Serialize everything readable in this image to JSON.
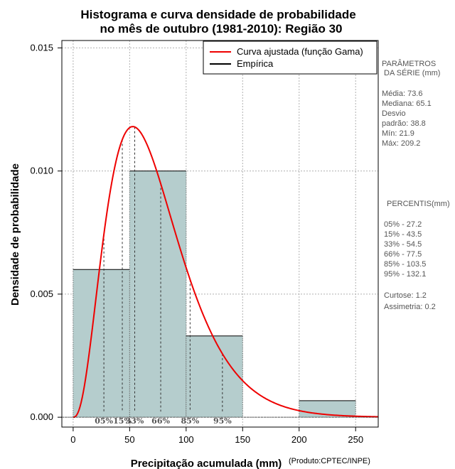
{
  "chart_data": {
    "type": "bar",
    "title_lines": [
      "Histograma e curva densidade de probabilidade",
      "no mês de outubro (1981-2010): Região 30"
    ],
    "xlabel": "Precipitação acumulada (mm)",
    "ylabel": "Densidade de probabilidade",
    "credit": "(Produto:CPTEC/INPE)",
    "xlim": [
      -10,
      270
    ],
    "ylim": [
      -0.0004,
      0.0153
    ],
    "x_ticks": [
      0,
      50,
      100,
      150,
      200,
      250
    ],
    "x_tick_labels": [
      "0",
      "50",
      "100",
      "150",
      "200",
      "250"
    ],
    "y_ticks": [
      0,
      0.005,
      0.01,
      0.015
    ],
    "y_tick_labels": [
      "0.000",
      "0.005",
      "0.010",
      "0.015"
    ],
    "grid": true,
    "histogram": [
      {
        "x0": 0,
        "x1": 50,
        "density": 0.006
      },
      {
        "x0": 50,
        "x1": 100,
        "density": 0.01
      },
      {
        "x0": 100,
        "x1": 150,
        "density": 0.0033
      },
      {
        "x0": 150,
        "x1": 200,
        "density": 0.0
      },
      {
        "x0": 200,
        "x1": 250,
        "density": 0.00067
      }
    ],
    "gamma_fit": {
      "shape": 3.6,
      "scale": 20.3
    },
    "percentile_marks": [
      {
        "x": 27.2,
        "label": "05%"
      },
      {
        "x": 43.5,
        "label": "15%"
      },
      {
        "x": 54.5,
        "label": "33%"
      },
      {
        "x": 77.5,
        "label": "66%"
      },
      {
        "x": 103.5,
        "label": "85%"
      },
      {
        "x": 132.1,
        "label": "95%"
      }
    ],
    "legend": {
      "placement": "top-right",
      "entries": [
        {
          "label": "Curva ajustada (função Gama)",
          "color": "#ee0000"
        },
        {
          "label": "Empírica",
          "color": "#000000"
        }
      ]
    },
    "colors": {
      "bar_fill": "#b5cdcd",
      "curve": "#ee0000",
      "grid": "#b0b0b0"
    }
  },
  "side_panel": {
    "params_title_1": "PARÂMETROS",
    "params_title_2": "DA SÉRIE (mm)",
    "params": [
      "Média:  73.6",
      "Mediana:  65.1",
      "Desvio",
      "padrão:  38.8",
      "Mín:  21.9",
      "Máx:  209.2"
    ],
    "percentis_title": "PERCENTIS(mm)",
    "percentis": [
      "05% -  27.2",
      "15% -  43.5",
      "33% -  54.5",
      "66% -  77.5",
      "85% -  103.5",
      "95% -  132.1"
    ],
    "curtose": "Curtose:  1.2",
    "assimetria": "Assimetria:  0.2"
  }
}
